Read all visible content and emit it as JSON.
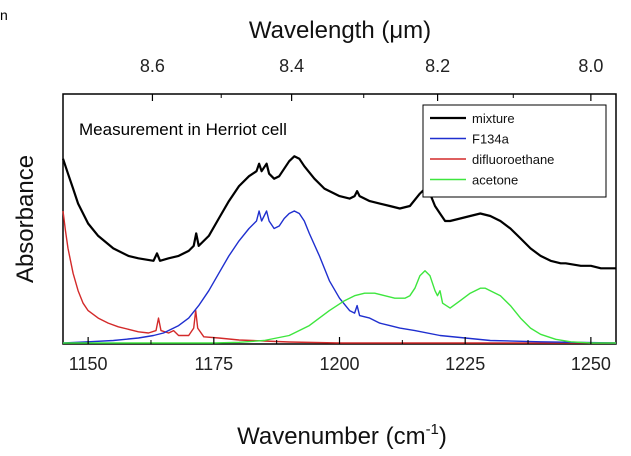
{
  "corner_fragment": "n",
  "chart_data": {
    "type": "line",
    "xlabel": "Wavenumber (cm",
    "xlabel_superscript": "-1",
    "xlabel_suffix": ")",
    "top_xlabel": "Wavelength (μm)",
    "ylabel": "Absorbance",
    "annotation": "Measurement in Herriot cell",
    "xlim": [
      1145,
      1255
    ],
    "ylim": [
      0,
      1
    ],
    "x_ticks": [
      1150,
      1175,
      1200,
      1225,
      1250
    ],
    "x_tick_labels": [
      "1150",
      "1175",
      "1200",
      "1225",
      "1250"
    ],
    "top_ticks": [
      8.6,
      8.4,
      8.2,
      8.0
    ],
    "top_tick_labels": [
      "8.6",
      "8.4",
      "8.2",
      "8.0"
    ],
    "y_ticks_shown": false,
    "grid": false,
    "legend_position": "top-right",
    "series": [
      {
        "name": "mixture",
        "color": "#000000",
        "points": [
          [
            1145,
            0.74
          ],
          [
            1146,
            0.68
          ],
          [
            1147,
            0.62
          ],
          [
            1148,
            0.56
          ],
          [
            1150,
            0.48
          ],
          [
            1152,
            0.43
          ],
          [
            1155,
            0.38
          ],
          [
            1158,
            0.35
          ],
          [
            1160,
            0.34
          ],
          [
            1163,
            0.33
          ],
          [
            1163.7,
            0.36
          ],
          [
            1164.3,
            0.33
          ],
          [
            1166,
            0.34
          ],
          [
            1168,
            0.35
          ],
          [
            1170,
            0.37
          ],
          [
            1171,
            0.39
          ],
          [
            1171.5,
            0.44
          ],
          [
            1172,
            0.39
          ],
          [
            1174,
            0.43
          ],
          [
            1176,
            0.5
          ],
          [
            1178,
            0.57
          ],
          [
            1180,
            0.63
          ],
          [
            1182,
            0.67
          ],
          [
            1183.5,
            0.69
          ],
          [
            1184,
            0.72
          ],
          [
            1184.5,
            0.69
          ],
          [
            1185.5,
            0.72
          ],
          [
            1186,
            0.68
          ],
          [
            1187,
            0.66
          ],
          [
            1188,
            0.67
          ],
          [
            1189,
            0.7
          ],
          [
            1190,
            0.73
          ],
          [
            1191,
            0.75
          ],
          [
            1192,
            0.74
          ],
          [
            1193,
            0.71
          ],
          [
            1195,
            0.66
          ],
          [
            1197,
            0.62
          ],
          [
            1200,
            0.59
          ],
          [
            1202,
            0.58
          ],
          [
            1203,
            0.59
          ],
          [
            1203.5,
            0.61
          ],
          [
            1204,
            0.59
          ],
          [
            1206,
            0.57
          ],
          [
            1208,
            0.56
          ],
          [
            1210,
            0.55
          ],
          [
            1212,
            0.54
          ],
          [
            1214,
            0.55
          ],
          [
            1216,
            0.6
          ],
          [
            1217,
            0.62
          ],
          [
            1218,
            0.6
          ],
          [
            1219,
            0.55
          ],
          [
            1220,
            0.52
          ],
          [
            1221,
            0.49
          ],
          [
            1222,
            0.49
          ],
          [
            1224,
            0.5
          ],
          [
            1226,
            0.51
          ],
          [
            1228,
            0.52
          ],
          [
            1230,
            0.51
          ],
          [
            1232,
            0.49
          ],
          [
            1234,
            0.46
          ],
          [
            1236,
            0.42
          ],
          [
            1238,
            0.38
          ],
          [
            1240,
            0.35
          ],
          [
            1242,
            0.33
          ],
          [
            1244,
            0.32
          ],
          [
            1245,
            0.32
          ],
          [
            1248,
            0.31
          ],
          [
            1250,
            0.31
          ],
          [
            1252,
            0.3
          ],
          [
            1255,
            0.3
          ]
        ]
      },
      {
        "name": "F134a",
        "color": "#1f2fcf",
        "points": [
          [
            1145,
            0.0
          ],
          [
            1150,
            0.005
          ],
          [
            1155,
            0.01
          ],
          [
            1160,
            0.02
          ],
          [
            1163,
            0.03
          ],
          [
            1165,
            0.04
          ],
          [
            1168,
            0.07
          ],
          [
            1170,
            0.1
          ],
          [
            1172,
            0.15
          ],
          [
            1174,
            0.21
          ],
          [
            1176,
            0.28
          ],
          [
            1178,
            0.35
          ],
          [
            1180,
            0.41
          ],
          [
            1182,
            0.46
          ],
          [
            1183.5,
            0.49
          ],
          [
            1184,
            0.53
          ],
          [
            1184.5,
            0.49
          ],
          [
            1185.5,
            0.53
          ],
          [
            1186,
            0.49
          ],
          [
            1187,
            0.46
          ],
          [
            1188,
            0.47
          ],
          [
            1189,
            0.5
          ],
          [
            1190,
            0.52
          ],
          [
            1191,
            0.53
          ],
          [
            1192,
            0.52
          ],
          [
            1193,
            0.49
          ],
          [
            1194,
            0.44
          ],
          [
            1196,
            0.35
          ],
          [
            1198,
            0.25
          ],
          [
            1200,
            0.18
          ],
          [
            1202,
            0.13
          ],
          [
            1203,
            0.12
          ],
          [
            1203.5,
            0.15
          ],
          [
            1204,
            0.11
          ],
          [
            1206,
            0.1
          ],
          [
            1208,
            0.08
          ],
          [
            1210,
            0.07
          ],
          [
            1212,
            0.06
          ],
          [
            1215,
            0.05
          ],
          [
            1220,
            0.03
          ],
          [
            1225,
            0.02
          ],
          [
            1230,
            0.01
          ],
          [
            1240,
            0.005
          ],
          [
            1255,
            0.0
          ]
        ]
      },
      {
        "name": "difluoroethane",
        "color": "#d32a2a",
        "points": [
          [
            1145,
            0.53
          ],
          [
            1145.5,
            0.45
          ],
          [
            1146,
            0.38
          ],
          [
            1147,
            0.28
          ],
          [
            1148,
            0.21
          ],
          [
            1149,
            0.16
          ],
          [
            1150,
            0.13
          ],
          [
            1152,
            0.1
          ],
          [
            1154,
            0.08
          ],
          [
            1156,
            0.065
          ],
          [
            1158,
            0.055
          ],
          [
            1160,
            0.045
          ],
          [
            1162,
            0.04
          ],
          [
            1163.5,
            0.05
          ],
          [
            1164,
            0.1
          ],
          [
            1164.5,
            0.05
          ],
          [
            1166,
            0.04
          ],
          [
            1167,
            0.05
          ],
          [
            1168,
            0.03
          ],
          [
            1170,
            0.03
          ],
          [
            1171,
            0.06
          ],
          [
            1171.4,
            0.13
          ],
          [
            1171.8,
            0.06
          ],
          [
            1173,
            0.025
          ],
          [
            1176,
            0.02
          ],
          [
            1180,
            0.012
          ],
          [
            1185,
            0.008
          ],
          [
            1190,
            0.004
          ],
          [
            1200,
            0.0
          ],
          [
            1255,
            0.0
          ]
        ]
      },
      {
        "name": "acetone",
        "color": "#3ee63e",
        "points": [
          [
            1145,
            0.0
          ],
          [
            1175,
            0.0
          ],
          [
            1180,
            0.003
          ],
          [
            1185,
            0.01
          ],
          [
            1190,
            0.03
          ],
          [
            1194,
            0.07
          ],
          [
            1198,
            0.13
          ],
          [
            1201,
            0.17
          ],
          [
            1203,
            0.19
          ],
          [
            1205,
            0.2
          ],
          [
            1207,
            0.2
          ],
          [
            1209,
            0.19
          ],
          [
            1211,
            0.18
          ],
          [
            1213,
            0.18
          ],
          [
            1214,
            0.19
          ],
          [
            1215,
            0.22
          ],
          [
            1216,
            0.27
          ],
          [
            1217,
            0.29
          ],
          [
            1218,
            0.27
          ],
          [
            1219,
            0.21
          ],
          [
            1219.5,
            0.19
          ],
          [
            1220,
            0.21
          ],
          [
            1220.5,
            0.16
          ],
          [
            1222,
            0.14
          ],
          [
            1224,
            0.17
          ],
          [
            1226,
            0.2
          ],
          [
            1228,
            0.22
          ],
          [
            1229,
            0.22
          ],
          [
            1230,
            0.21
          ],
          [
            1232,
            0.19
          ],
          [
            1234,
            0.15
          ],
          [
            1236,
            0.1
          ],
          [
            1238,
            0.06
          ],
          [
            1240,
            0.035
          ],
          [
            1243,
            0.015
          ],
          [
            1246,
            0.005
          ],
          [
            1250,
            0.0
          ],
          [
            1255,
            0.0
          ]
        ]
      }
    ]
  }
}
